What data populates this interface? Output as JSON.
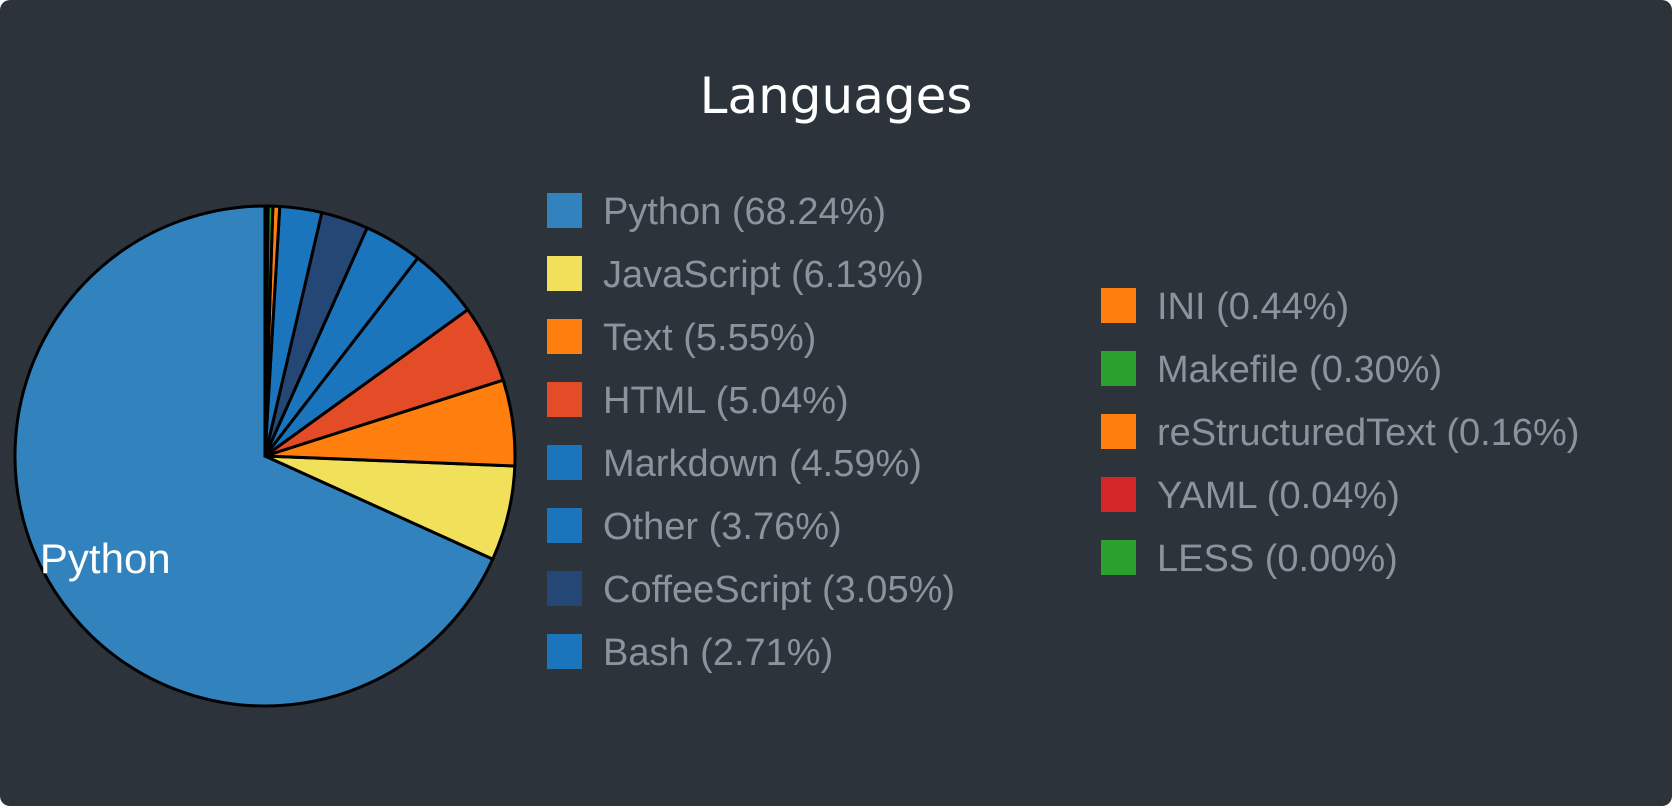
{
  "chart_data": {
    "type": "pie",
    "title": "Languages",
    "start_angle_deg": 0,
    "direction": "counterclockwise",
    "slice_labels_shown": [
      "Python"
    ],
    "slices": [
      {
        "label": "Python",
        "value": 68.24,
        "legend": "Python (68.24%)",
        "color": "#3182bd"
      },
      {
        "label": "JavaScript",
        "value": 6.13,
        "legend": "JavaScript (6.13%)",
        "color": "#f1e05a"
      },
      {
        "label": "Text",
        "value": 5.55,
        "legend": "Text (5.55%)",
        "color": "#ff7f0e"
      },
      {
        "label": "HTML",
        "value": 5.04,
        "legend": "HTML (5.04%)",
        "color": "#e34c26"
      },
      {
        "label": "Markdown",
        "value": 4.59,
        "legend": "Markdown (4.59%)",
        "color": "#1b75bc"
      },
      {
        "label": "Other",
        "value": 3.76,
        "legend": "Other (3.76%)",
        "color": "#1b75bc"
      },
      {
        "label": "CoffeeScript",
        "value": 3.05,
        "legend": "CoffeeScript (3.05%)",
        "color": "#244776"
      },
      {
        "label": "Bash",
        "value": 2.71,
        "legend": "Bash (2.71%)",
        "color": "#1b75bc"
      },
      {
        "label": "INI",
        "value": 0.44,
        "legend": "INI (0.44%)",
        "color": "#ff7f0e"
      },
      {
        "label": "Makefile",
        "value": 0.3,
        "legend": "Makefile (0.30%)",
        "color": "#2ca02c"
      },
      {
        "label": "reStructuredText",
        "value": 0.16,
        "legend": "reStructuredText (0.16%)",
        "color": "#ff7f0e"
      },
      {
        "label": "YAML",
        "value": 0.04,
        "legend": "YAML (0.04%)",
        "color": "#d62728"
      },
      {
        "label": "LESS",
        "value": 0.0,
        "legend": "LESS (0.00%)",
        "color": "#2ca02c"
      }
    ],
    "legend_position": "right, two columns"
  },
  "colors": {
    "background": "#2d333b",
    "title": "#ffffff",
    "legend_text": "#8b939c",
    "slice_stroke": "#000000"
  }
}
